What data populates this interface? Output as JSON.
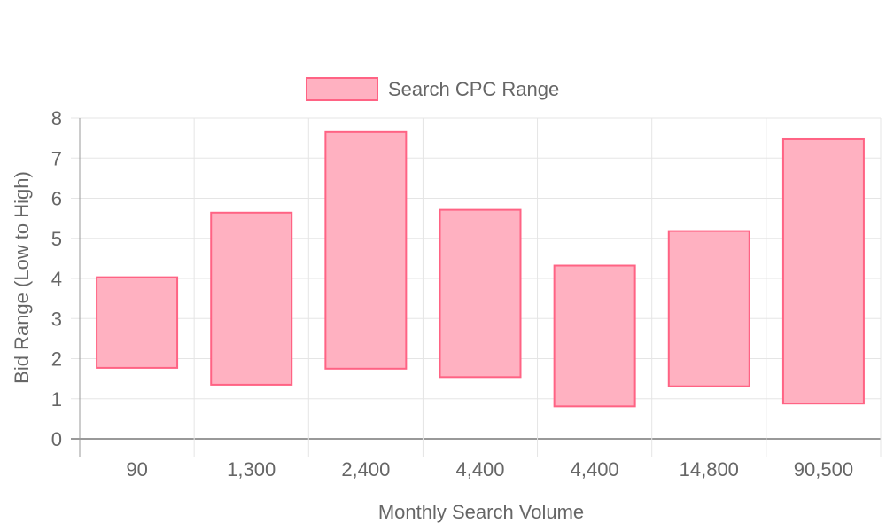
{
  "chart_data": {
    "type": "bar",
    "bar_style": "floating-range",
    "categories": [
      "90",
      "1,300",
      "2,400",
      "4,400",
      "4,400",
      "14,800",
      "90,500"
    ],
    "series": [
      {
        "name": "Search CPC Range",
        "ranges": [
          [
            1.77,
            4.03
          ],
          [
            1.35,
            5.64
          ],
          [
            1.75,
            7.65
          ],
          [
            1.54,
            5.71
          ],
          [
            0.81,
            4.32
          ],
          [
            1.31,
            5.18
          ],
          [
            0.88,
            7.47
          ]
        ]
      }
    ],
    "xlabel": "Monthly Search Volume",
    "ylabel": "Bid Range (Low to High)",
    "ylim": [
      0,
      8
    ],
    "yticks": [
      "0",
      "1",
      "2",
      "3",
      "4",
      "5",
      "6",
      "7",
      "8"
    ],
    "grid": true,
    "legend_position": "top-center",
    "colors": {
      "bar_fill": "#ffb1c1",
      "bar_border": "#ff6384",
      "grid": "#e5e5e5",
      "axis": "#999999",
      "text": "#666666"
    }
  }
}
